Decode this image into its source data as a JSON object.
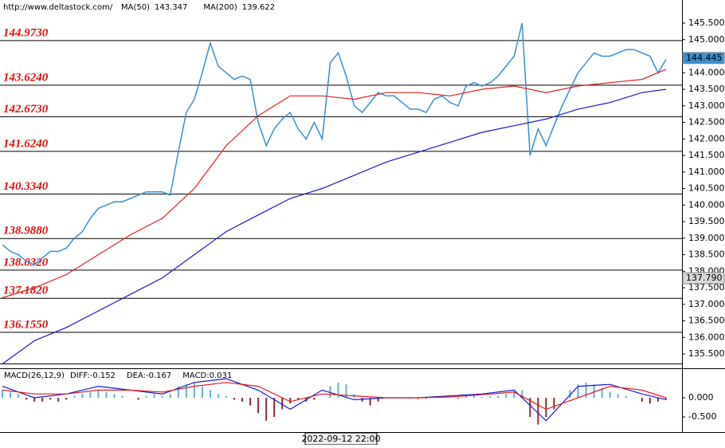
{
  "chart_data": [
    {
      "type": "line",
      "source": "http://www.deltastock.com/",
      "x": [
        0,
        1,
        2,
        3,
        4,
        5,
        6,
        7,
        8,
        9,
        10,
        11,
        12,
        13,
        14,
        15,
        16,
        17,
        18,
        19,
        20,
        21,
        22,
        23,
        24,
        25,
        26,
        27,
        28,
        29,
        30,
        31,
        32,
        33,
        34,
        35,
        36,
        37,
        38,
        39,
        40,
        41,
        42,
        43,
        44,
        45,
        46,
        47,
        48,
        49,
        50,
        51,
        52,
        53,
        54,
        55,
        56,
        57,
        58,
        59,
        60,
        61,
        62,
        63,
        64,
        65,
        66,
        67,
        68,
        69,
        70,
        71,
        72,
        73,
        74,
        75,
        76,
        77,
        78,
        79,
        80,
        81,
        82,
        83
      ],
      "xlim": [
        -0.3,
        85
      ],
      "series": [
        {
          "name": "Price",
          "color": "#3a8fd0",
          "values": [
            138.8,
            138.6,
            138.5,
            138.3,
            138.2,
            138.4,
            138.6,
            138.6,
            138.7,
            139.0,
            139.2,
            139.6,
            139.9,
            140.0,
            140.1,
            140.1,
            140.2,
            140.3,
            140.4,
            140.4,
            140.4,
            140.3,
            141.6,
            142.8,
            143.2,
            144.0,
            144.9,
            144.2,
            144.0,
            143.8,
            143.9,
            143.8,
            142.5,
            141.8,
            142.3,
            142.6,
            142.8,
            142.3,
            142.0,
            142.5,
            142.0,
            144.3,
            144.6,
            143.9,
            143.0,
            142.8,
            143.1,
            143.4,
            143.3,
            143.3,
            143.1,
            142.9,
            142.9,
            142.8,
            143.2,
            143.3,
            143.1,
            143.0,
            143.6,
            143.7,
            143.6,
            143.7,
            143.9,
            144.2,
            144.5,
            145.5,
            141.5,
            142.3,
            141.8,
            142.4,
            143.0,
            143.5,
            144.0,
            144.3,
            144.6,
            144.5,
            144.5,
            144.6,
            144.7,
            144.7,
            144.6,
            144.5,
            144.0,
            144.4
          ]
        },
        {
          "name": "MA(50)",
          "legend_value": 143.347,
          "color": "#e02020",
          "x": [
            0,
            4,
            8,
            12,
            16,
            20,
            24,
            28,
            32,
            36,
            40,
            44,
            48,
            52,
            56,
            60,
            64,
            68,
            72,
            76,
            80,
            83
          ],
          "values": [
            137.2,
            137.5,
            137.9,
            138.5,
            139.1,
            139.6,
            140.5,
            141.8,
            142.7,
            143.3,
            143.3,
            143.2,
            143.4,
            143.4,
            143.3,
            143.5,
            143.6,
            143.4,
            143.6,
            143.7,
            143.8,
            144.1
          ]
        },
        {
          "name": "MA(200)",
          "legend_value": 139.622,
          "color": "#1a1acf",
          "x": [
            0,
            4,
            8,
            12,
            16,
            20,
            24,
            28,
            32,
            36,
            40,
            44,
            48,
            52,
            56,
            60,
            64,
            68,
            72,
            76,
            80,
            83
          ],
          "values": [
            135.2,
            135.9,
            136.3,
            136.8,
            137.3,
            137.8,
            138.5,
            139.2,
            139.7,
            140.2,
            140.5,
            140.9,
            141.3,
            141.6,
            141.9,
            142.2,
            142.4,
            142.6,
            142.9,
            143.1,
            143.4,
            143.5
          ]
        }
      ],
      "levels": [
        {
          "value": 144.973,
          "label": "144.9730"
        },
        {
          "value": 143.624,
          "label": "143.6240"
        },
        {
          "value": 142.673,
          "label": "142.6730"
        },
        {
          "value": 141.624,
          "label": "141.6240"
        },
        {
          "value": 140.334,
          "label": "140.3340"
        },
        {
          "value": 138.988,
          "label": "138.9880"
        },
        {
          "value": 138.032,
          "label": "138.0320"
        },
        {
          "value": 137.182,
          "label": "137.1820"
        },
        {
          "value": 136.155,
          "label": "136.1550"
        }
      ],
      "markers": [
        {
          "value": 144.445,
          "label": "144.445",
          "color": "#3a8fd0"
        },
        {
          "value": 137.79,
          "label": "137.790",
          "color": "#d8d8d8"
        }
      ],
      "ylim": [
        135.211,
        146.199
      ],
      "yticks": [
        {
          "value": 135.5,
          "label": "135.500"
        },
        {
          "value": 136,
          "label": "136.000"
        },
        {
          "value": 136.5,
          "label": "136.500"
        },
        {
          "value": 137,
          "label": "137.000"
        },
        {
          "value": 137.5,
          "label": "137.500"
        },
        {
          "value": 138,
          "label": "138.000"
        },
        {
          "value": 138.5,
          "label": "138.500"
        },
        {
          "value": 139,
          "label": "139.000"
        },
        {
          "value": 139.5,
          "label": "139.500"
        },
        {
          "value": 140,
          "label": "140.000"
        },
        {
          "value": 140.5,
          "label": "140.500"
        },
        {
          "value": 141,
          "label": "141.000"
        },
        {
          "value": 141.5,
          "label": "141.500"
        },
        {
          "value": 142,
          "label": "142.000"
        },
        {
          "value": 142.5,
          "label": "142.500"
        },
        {
          "value": 143,
          "label": "143.000"
        },
        {
          "value": 143.5,
          "label": "143.500"
        },
        {
          "value": 144,
          "label": "144.000"
        },
        {
          "value": 144.5,
          "label": "144.500"
        },
        {
          "value": 145,
          "label": "145.000"
        },
        {
          "value": 145.5,
          "label": "145.500"
        }
      ],
      "cursor_label": "2022-09-12 22:00"
    },
    {
      "type": "bar",
      "title": "MACD(26,12,9)",
      "xlim": [
        -0.3,
        85
      ],
      "histogram": {
        "name": "MACD:0.031",
        "up_color": "#5fb0e0",
        "down_color": "#8b2a2a",
        "values": [
          0.2,
          0.15,
          0.1,
          -0.05,
          -0.1,
          -0.1,
          -0.05,
          -0.1,
          -0.05,
          0.05,
          0.1,
          0.15,
          0.2,
          0.15,
          0.1,
          0.05,
          0.0,
          -0.05,
          0.05,
          0.1,
          0.05,
          0.1,
          0.3,
          0.35,
          0.4,
          0.3,
          0.2,
          0.1,
          0.05,
          -0.05,
          -0.1,
          -0.2,
          -0.4,
          -0.6,
          -0.5,
          -0.3,
          -0.15,
          -0.05,
          -0.1,
          -0.05,
          0.0,
          0.3,
          0.4,
          0.35,
          0.1,
          -0.1,
          -0.2,
          -0.1,
          0.0,
          0.02,
          0.0,
          -0.02,
          -0.03,
          -0.02,
          0.02,
          0.03,
          0.0,
          -0.02,
          0.05,
          0.05,
          0.02,
          0.04,
          0.05,
          0.1,
          0.15,
          0.2,
          -0.5,
          -0.7,
          -0.5,
          -0.3,
          0.0,
          0.2,
          0.35,
          0.4,
          0.35,
          0.25,
          0.15,
          0.1,
          0.05,
          0.0,
          -0.1,
          -0.15,
          -0.1,
          -0.05
        ]
      },
      "series": [
        {
          "name": "DIFF:-0.152",
          "color": "#1a1acf",
          "x": [
            0,
            4,
            8,
            12,
            16,
            20,
            24,
            28,
            32,
            36,
            40,
            44,
            48,
            52,
            56,
            60,
            64,
            68,
            72,
            76,
            80,
            83
          ],
          "values": [
            0.3,
            0.0,
            0.1,
            0.3,
            0.2,
            0.1,
            0.4,
            0.5,
            0.2,
            -0.3,
            0.2,
            -0.05,
            0.0,
            0.0,
            0.05,
            0.1,
            0.2,
            -0.6,
            0.3,
            0.35,
            0.1,
            -0.05
          ]
        },
        {
          "name": "DEA:-0.167",
          "color": "#e02020",
          "x": [
            0,
            4,
            8,
            12,
            16,
            20,
            24,
            28,
            32,
            36,
            40,
            44,
            48,
            52,
            56,
            60,
            64,
            68,
            72,
            76,
            80,
            83
          ],
          "values": [
            0.2,
            0.1,
            0.1,
            0.2,
            0.2,
            0.15,
            0.3,
            0.4,
            0.3,
            -0.1,
            0.1,
            0.05,
            0.0,
            0.0,
            0.02,
            0.08,
            0.15,
            -0.3,
            0.0,
            0.3,
            0.2,
            0.0
          ]
        }
      ],
      "ylim": [
        -0.854,
        0.771
      ],
      "yticks": [
        {
          "value": 0,
          "label": "0.000"
        },
        {
          "value": -0.5,
          "label": "-0.500"
        }
      ]
    }
  ]
}
